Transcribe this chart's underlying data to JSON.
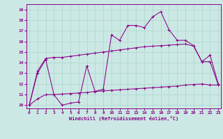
{
  "xlabel": "Windchill (Refroidissement éolien,°C)",
  "x_ticks": [
    0,
    1,
    2,
    3,
    4,
    5,
    6,
    7,
    8,
    9,
    10,
    11,
    12,
    13,
    14,
    15,
    16,
    17,
    18,
    19,
    20,
    21,
    22,
    23
  ],
  "y_ticks": [
    10,
    11,
    12,
    13,
    14,
    15,
    16,
    17,
    18,
    19
  ],
  "ylim": [
    9.7,
    19.5
  ],
  "xlim": [
    -0.3,
    23.3
  ],
  "bg_color": "#cce8e4",
  "line_color": "#880088",
  "grid_color": "#b0d8d0",
  "series1_y": [
    10.0,
    13.0,
    14.3,
    11.0,
    10.0,
    10.2,
    10.3,
    13.7,
    11.3,
    11.5,
    16.6,
    16.1,
    17.5,
    17.5,
    17.3,
    18.3,
    18.8,
    17.1,
    16.1,
    16.1,
    15.6,
    14.1,
    14.7,
    12.0
  ],
  "series2_y": [
    10.0,
    13.2,
    14.4,
    14.5,
    14.5,
    14.6,
    14.7,
    14.8,
    14.9,
    15.0,
    15.1,
    15.2,
    15.3,
    15.4,
    15.5,
    15.55,
    15.6,
    15.65,
    15.7,
    15.75,
    15.55,
    14.1,
    14.1,
    11.9
  ],
  "series3_y": [
    10.0,
    10.6,
    11.0,
    11.0,
    11.05,
    11.1,
    11.15,
    11.2,
    11.3,
    11.35,
    11.4,
    11.45,
    11.5,
    11.55,
    11.6,
    11.65,
    11.7,
    11.75,
    11.8,
    11.9,
    11.95,
    12.0,
    11.9,
    11.9
  ]
}
